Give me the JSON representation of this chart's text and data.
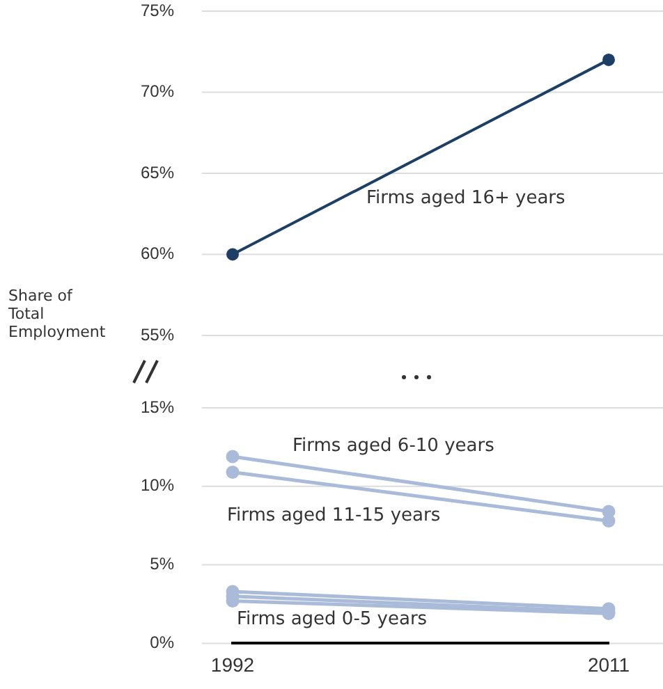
{
  "chart_data": [
    {
      "type": "line",
      "ylabel": "Share of Total Employment",
      "categories": [
        "1992",
        "2011"
      ],
      "series": [
        {
          "name": "Firms aged 16+ years",
          "color": "#1d3f66",
          "values": [
            60,
            72
          ]
        }
      ],
      "ylim": [
        55,
        75
      ],
      "yticks": [
        {
          "value": 55,
          "label": "55%"
        },
        {
          "value": 60,
          "label": "60%"
        },
        {
          "value": 65,
          "label": "65%"
        },
        {
          "value": 70,
          "label": "70%"
        },
        {
          "value": 75,
          "label": "75%"
        }
      ],
      "grid": "y",
      "legend": false,
      "marker": "circle",
      "line_style": "solid",
      "tick_labels": "y"
    },
    {
      "type": "line",
      "categories": [
        "1992",
        "2011"
      ],
      "series": [
        {
          "name": "Firms aged 6-10 years",
          "color": "#a9bbd9",
          "values": [
            11.9,
            8.4
          ]
        },
        {
          "name": "Firms aged 11-15 years",
          "color": "#a9bbd9",
          "values": [
            10.9,
            7.8
          ]
        },
        {
          "name": "Firms aged 0-5 years",
          "color": "#a9bbd9",
          "values": [
            3.3,
            2.2
          ]
        },
        {
          "color": "#a9bbd9",
          "values": [
            3.0,
            2.0
          ]
        },
        {
          "color": "#a9bbd9",
          "values": [
            2.7,
            1.9
          ]
        }
      ],
      "ylim": [
        0,
        15
      ],
      "yticks": [
        {
          "value": 0,
          "label": "0%"
        },
        {
          "value": 5,
          "label": "5%"
        },
        {
          "value": 10,
          "label": "10%"
        },
        {
          "value": 15,
          "label": "15%"
        }
      ],
      "grid": "y",
      "legend": false,
      "marker": "circle",
      "line_style": "solid"
    }
  ]
}
